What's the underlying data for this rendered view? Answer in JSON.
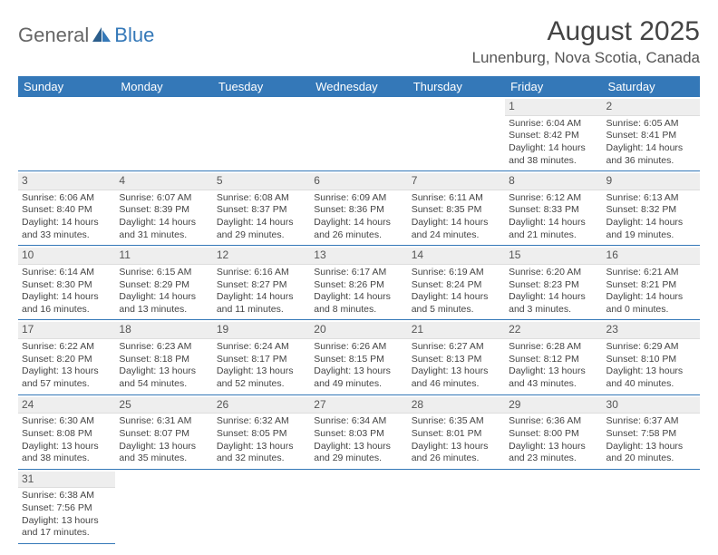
{
  "logo": {
    "text1": "General",
    "text2": "Blue"
  },
  "title": "August 2025",
  "location": "Lunenburg, Nova Scotia, Canada",
  "colors": {
    "header_bg": "#3478b8",
    "header_fg": "#ffffff",
    "daynum_bg": "#eeeeee",
    "rule": "#3478b8",
    "text": "#444444"
  },
  "typography": {
    "title_fontsize": 30,
    "location_fontsize": 17,
    "dayheader_fontsize": 13,
    "cell_fontsize": 10.5
  },
  "day_headers": [
    "Sunday",
    "Monday",
    "Tuesday",
    "Wednesday",
    "Thursday",
    "Friday",
    "Saturday"
  ],
  "weeks": [
    [
      null,
      null,
      null,
      null,
      null,
      {
        "n": "1",
        "sr": "Sunrise: 6:04 AM",
        "ss": "Sunset: 8:42 PM",
        "d1": "Daylight: 14 hours",
        "d2": "and 38 minutes."
      },
      {
        "n": "2",
        "sr": "Sunrise: 6:05 AM",
        "ss": "Sunset: 8:41 PM",
        "d1": "Daylight: 14 hours",
        "d2": "and 36 minutes."
      }
    ],
    [
      {
        "n": "3",
        "sr": "Sunrise: 6:06 AM",
        "ss": "Sunset: 8:40 PM",
        "d1": "Daylight: 14 hours",
        "d2": "and 33 minutes."
      },
      {
        "n": "4",
        "sr": "Sunrise: 6:07 AM",
        "ss": "Sunset: 8:39 PM",
        "d1": "Daylight: 14 hours",
        "d2": "and 31 minutes."
      },
      {
        "n": "5",
        "sr": "Sunrise: 6:08 AM",
        "ss": "Sunset: 8:37 PM",
        "d1": "Daylight: 14 hours",
        "d2": "and 29 minutes."
      },
      {
        "n": "6",
        "sr": "Sunrise: 6:09 AM",
        "ss": "Sunset: 8:36 PM",
        "d1": "Daylight: 14 hours",
        "d2": "and 26 minutes."
      },
      {
        "n": "7",
        "sr": "Sunrise: 6:11 AM",
        "ss": "Sunset: 8:35 PM",
        "d1": "Daylight: 14 hours",
        "d2": "and 24 minutes."
      },
      {
        "n": "8",
        "sr": "Sunrise: 6:12 AM",
        "ss": "Sunset: 8:33 PM",
        "d1": "Daylight: 14 hours",
        "d2": "and 21 minutes."
      },
      {
        "n": "9",
        "sr": "Sunrise: 6:13 AM",
        "ss": "Sunset: 8:32 PM",
        "d1": "Daylight: 14 hours",
        "d2": "and 19 minutes."
      }
    ],
    [
      {
        "n": "10",
        "sr": "Sunrise: 6:14 AM",
        "ss": "Sunset: 8:30 PM",
        "d1": "Daylight: 14 hours",
        "d2": "and 16 minutes."
      },
      {
        "n": "11",
        "sr": "Sunrise: 6:15 AM",
        "ss": "Sunset: 8:29 PM",
        "d1": "Daylight: 14 hours",
        "d2": "and 13 minutes."
      },
      {
        "n": "12",
        "sr": "Sunrise: 6:16 AM",
        "ss": "Sunset: 8:27 PM",
        "d1": "Daylight: 14 hours",
        "d2": "and 11 minutes."
      },
      {
        "n": "13",
        "sr": "Sunrise: 6:17 AM",
        "ss": "Sunset: 8:26 PM",
        "d1": "Daylight: 14 hours",
        "d2": "and 8 minutes."
      },
      {
        "n": "14",
        "sr": "Sunrise: 6:19 AM",
        "ss": "Sunset: 8:24 PM",
        "d1": "Daylight: 14 hours",
        "d2": "and 5 minutes."
      },
      {
        "n": "15",
        "sr": "Sunrise: 6:20 AM",
        "ss": "Sunset: 8:23 PM",
        "d1": "Daylight: 14 hours",
        "d2": "and 3 minutes."
      },
      {
        "n": "16",
        "sr": "Sunrise: 6:21 AM",
        "ss": "Sunset: 8:21 PM",
        "d1": "Daylight: 14 hours",
        "d2": "and 0 minutes."
      }
    ],
    [
      {
        "n": "17",
        "sr": "Sunrise: 6:22 AM",
        "ss": "Sunset: 8:20 PM",
        "d1": "Daylight: 13 hours",
        "d2": "and 57 minutes."
      },
      {
        "n": "18",
        "sr": "Sunrise: 6:23 AM",
        "ss": "Sunset: 8:18 PM",
        "d1": "Daylight: 13 hours",
        "d2": "and 54 minutes."
      },
      {
        "n": "19",
        "sr": "Sunrise: 6:24 AM",
        "ss": "Sunset: 8:17 PM",
        "d1": "Daylight: 13 hours",
        "d2": "and 52 minutes."
      },
      {
        "n": "20",
        "sr": "Sunrise: 6:26 AM",
        "ss": "Sunset: 8:15 PM",
        "d1": "Daylight: 13 hours",
        "d2": "and 49 minutes."
      },
      {
        "n": "21",
        "sr": "Sunrise: 6:27 AM",
        "ss": "Sunset: 8:13 PM",
        "d1": "Daylight: 13 hours",
        "d2": "and 46 minutes."
      },
      {
        "n": "22",
        "sr": "Sunrise: 6:28 AM",
        "ss": "Sunset: 8:12 PM",
        "d1": "Daylight: 13 hours",
        "d2": "and 43 minutes."
      },
      {
        "n": "23",
        "sr": "Sunrise: 6:29 AM",
        "ss": "Sunset: 8:10 PM",
        "d1": "Daylight: 13 hours",
        "d2": "and 40 minutes."
      }
    ],
    [
      {
        "n": "24",
        "sr": "Sunrise: 6:30 AM",
        "ss": "Sunset: 8:08 PM",
        "d1": "Daylight: 13 hours",
        "d2": "and 38 minutes."
      },
      {
        "n": "25",
        "sr": "Sunrise: 6:31 AM",
        "ss": "Sunset: 8:07 PM",
        "d1": "Daylight: 13 hours",
        "d2": "and 35 minutes."
      },
      {
        "n": "26",
        "sr": "Sunrise: 6:32 AM",
        "ss": "Sunset: 8:05 PM",
        "d1": "Daylight: 13 hours",
        "d2": "and 32 minutes."
      },
      {
        "n": "27",
        "sr": "Sunrise: 6:34 AM",
        "ss": "Sunset: 8:03 PM",
        "d1": "Daylight: 13 hours",
        "d2": "and 29 minutes."
      },
      {
        "n": "28",
        "sr": "Sunrise: 6:35 AM",
        "ss": "Sunset: 8:01 PM",
        "d1": "Daylight: 13 hours",
        "d2": "and 26 minutes."
      },
      {
        "n": "29",
        "sr": "Sunrise: 6:36 AM",
        "ss": "Sunset: 8:00 PM",
        "d1": "Daylight: 13 hours",
        "d2": "and 23 minutes."
      },
      {
        "n": "30",
        "sr": "Sunrise: 6:37 AM",
        "ss": "Sunset: 7:58 PM",
        "d1": "Daylight: 13 hours",
        "d2": "and 20 minutes."
      }
    ],
    [
      {
        "n": "31",
        "sr": "Sunrise: 6:38 AM",
        "ss": "Sunset: 7:56 PM",
        "d1": "Daylight: 13 hours",
        "d2": "and 17 minutes."
      },
      null,
      null,
      null,
      null,
      null,
      null
    ]
  ]
}
